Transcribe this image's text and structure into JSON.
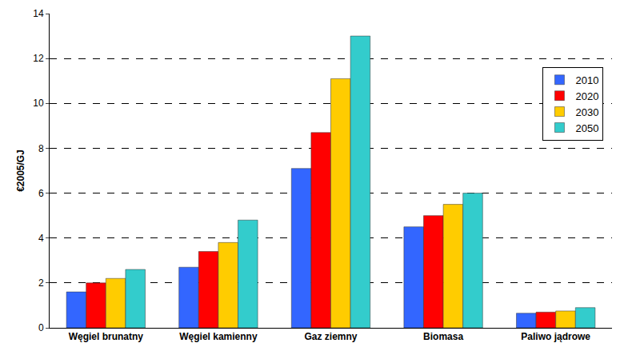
{
  "chart_data": {
    "type": "bar",
    "y_label": "€2005/GJ",
    "categories": [
      "Węgiel brunatny",
      "Węgiel kamienny",
      "Gaz ziemny",
      "Biomasa",
      "Paliwo jądrowe"
    ],
    "series": [
      {
        "name": "2010",
        "color": "#3366ff",
        "values": [
          1.6,
          2.7,
          7.1,
          4.5,
          0.65
        ]
      },
      {
        "name": "2020",
        "color": "#ff0000",
        "values": [
          2.0,
          3.4,
          8.7,
          5.0,
          0.7
        ]
      },
      {
        "name": "2030",
        "color": "#ffcc00",
        "values": [
          2.2,
          3.8,
          11.1,
          5.5,
          0.75
        ]
      },
      {
        "name": "2050",
        "color": "#33cccc",
        "values": [
          2.6,
          4.8,
          13.0,
          6.0,
          0.9
        ]
      }
    ],
    "ylim": [
      0,
      14
    ],
    "yticks": [
      0,
      2,
      4,
      6,
      8,
      10,
      12,
      14
    ],
    "grid": true,
    "legend": "top right"
  }
}
